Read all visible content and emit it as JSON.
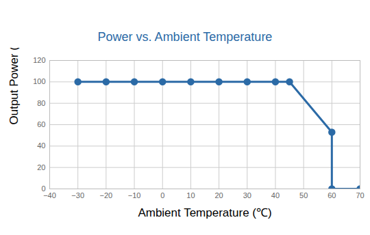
{
  "chart_data": {
    "type": "line",
    "title": "Power vs. Ambient Temperature",
    "xlabel": "Ambient Temperature (℃)",
    "ylabel": "Output Power (%)",
    "x": [
      -30,
      -20,
      -10,
      0,
      10,
      20,
      30,
      40,
      45,
      60,
      60,
      70
    ],
    "values": [
      100,
      100,
      100,
      100,
      100,
      100,
      100,
      100,
      100,
      53,
      0,
      0
    ],
    "color": "#2b6aa6",
    "marker": "circle",
    "xlim": [
      -40,
      70
    ],
    "xticks": [
      -40,
      -30,
      -20,
      -10,
      0,
      10,
      20,
      30,
      40,
      50,
      60,
      70
    ],
    "ylim": [
      0,
      120
    ],
    "yticks": [
      0,
      20,
      40,
      60,
      80,
      100,
      120
    ],
    "grid": true
  }
}
